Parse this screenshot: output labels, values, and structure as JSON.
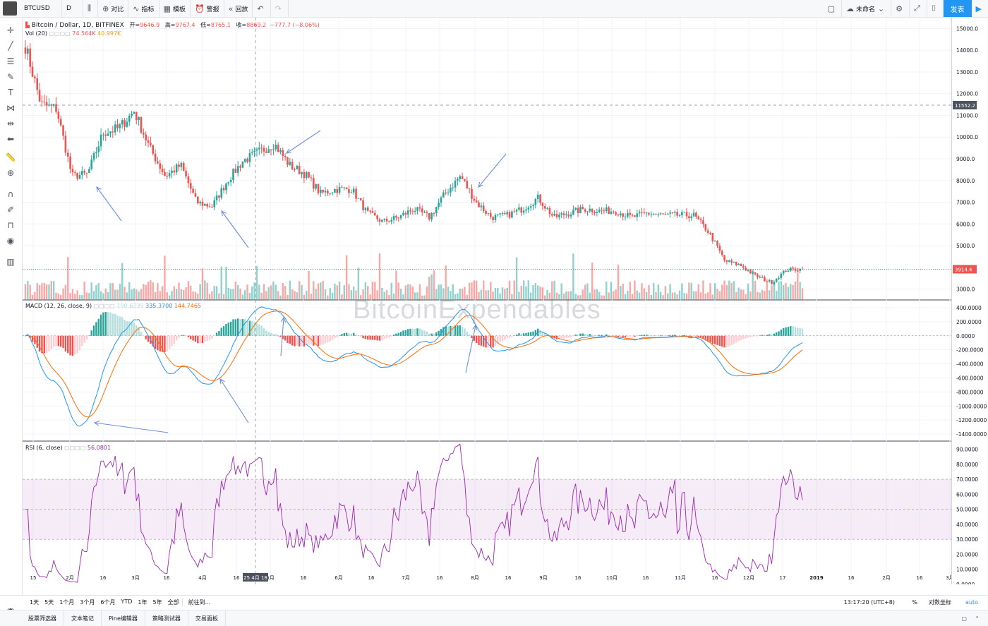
{
  "toolbar": {
    "symbol": "BTCUSD",
    "interval": "D",
    "compare": "对比",
    "indicators": "指标",
    "templates": "模板",
    "alert": "警报",
    "replay": "回放",
    "layout_name": "未命名",
    "publish": "发表"
  },
  "legend": {
    "main_title": "Bitcoin / Dollar, 1D, BITFINEX",
    "open_label": "开=",
    "open": "9646.9",
    "high_label": "高=",
    "high": "9767.4",
    "low_label": "低=",
    "low": "8765.1",
    "close_label": "收=",
    "close": "8869.2",
    "change": "−777.7 (−8.06%)",
    "vol_label": "Vol (20)",
    "vol_value": "74.564K",
    "vol_ma": "40.997K",
    "macd_label": "MACD (12, 26, close, 9)",
    "macd_hist": "190.6235",
    "macd_line": "335.3700",
    "macd_signal": "144.7465",
    "rsi_label": "RSI (6, close)",
    "rsi_value": "56.0801"
  },
  "price_axis": [
    "15000.0",
    "14000.0",
    "13000.0",
    "12000.0",
    "11000.0",
    "10000.0",
    "9000.0",
    "8000.0",
    "7000.0",
    "6000.0",
    "5000.0",
    "3000.0"
  ],
  "price_badges": {
    "crosshair": "11552.2",
    "last": "3914.4"
  },
  "macd_axis": [
    "400.0000",
    "200.0000",
    "0.0000",
    "-200.0000",
    "-400.0000",
    "-600.0000",
    "-800.0000",
    "-1000.0000",
    "-1200.0000",
    "-1400.0000"
  ],
  "rsi_axis": [
    "90.0000",
    "80.0000",
    "70.0000",
    "60.0000",
    "50.0000",
    "40.0000",
    "30.0000",
    "20.0000",
    "10.0000",
    "0.0000"
  ],
  "time_axis": [
    "15",
    "2月",
    "16",
    "3月",
    "16",
    "4月",
    "16",
    "5月",
    "16",
    "6月",
    "16",
    "7月",
    "16",
    "8月",
    "16",
    "9月",
    "16",
    "10月",
    "16",
    "11月",
    "16",
    "12月",
    "17",
    "2019",
    "16",
    "2月",
    "16",
    "3月"
  ],
  "time_badge": "25 4月 18",
  "bottombar": {
    "ranges": [
      "1天",
      "5天",
      "1个月",
      "3个月",
      "6个月",
      "YTD",
      "1年",
      "5年",
      "全部"
    ],
    "goto": "前往到...",
    "clock": "13:17:20 (UTC+8)",
    "percent": "%",
    "log": "对数坐标",
    "auto": "auto"
  },
  "footer": [
    "股票筛选器",
    "文本笔记",
    "Pine编辑器",
    "策略测试器",
    "交易面板"
  ],
  "watermark": "BitcoinExpendables",
  "colors": {
    "up": "#26a69a",
    "down": "#ef5350",
    "macd": "#2196f3",
    "signal": "#ff6d00",
    "rsi": "#9c27b0"
  },
  "chart_data": {
    "type": "candlestick",
    "symbol": "BTCUSD",
    "exchange": "BITFINEX",
    "interval": "1D",
    "ylim": [
      2500,
      15500
    ],
    "weekly_close": [
      [
        "2018-01-08",
        14200
      ],
      [
        "2018-01-15",
        11500
      ],
      [
        "2018-01-22",
        11300
      ],
      [
        "2018-01-29",
        8200
      ],
      [
        "2018-02-05",
        8300
      ],
      [
        "2018-02-12",
        10200
      ],
      [
        "2018-02-19",
        10400
      ],
      [
        "2018-02-26",
        11200
      ],
      [
        "2018-03-05",
        9500
      ],
      [
        "2018-03-12",
        8200
      ],
      [
        "2018-03-19",
        8700
      ],
      [
        "2018-03-26",
        7000
      ],
      [
        "2018-04-02",
        6800
      ],
      [
        "2018-04-09",
        8000
      ],
      [
        "2018-04-16",
        8900
      ],
      [
        "2018-04-23",
        9300
      ],
      [
        "2018-04-30",
        9700
      ],
      [
        "2018-05-07",
        8700
      ],
      [
        "2018-05-14",
        8300
      ],
      [
        "2018-05-21",
        7400
      ],
      [
        "2018-05-28",
        7600
      ],
      [
        "2018-06-04",
        7600
      ],
      [
        "2018-06-11",
        6500
      ],
      [
        "2018-06-18",
        6100
      ],
      [
        "2018-06-25",
        6300
      ],
      [
        "2018-07-02",
        6700
      ],
      [
        "2018-07-09",
        6300
      ],
      [
        "2018-07-16",
        7400
      ],
      [
        "2018-07-23",
        8200
      ],
      [
        "2018-07-30",
        7000
      ],
      [
        "2018-08-06",
        6300
      ],
      [
        "2018-08-13",
        6400
      ],
      [
        "2018-08-20",
        6700
      ],
      [
        "2018-08-27",
        7200
      ],
      [
        "2018-09-03",
        6300
      ],
      [
        "2018-09-10",
        6500
      ],
      [
        "2018-09-17",
        6700
      ],
      [
        "2018-09-24",
        6600
      ],
      [
        "2018-10-01",
        6600
      ],
      [
        "2018-10-08",
        6300
      ],
      [
        "2018-10-15",
        6500
      ],
      [
        "2018-10-22",
        6400
      ],
      [
        "2018-10-29",
        6400
      ],
      [
        "2018-11-05",
        6400
      ],
      [
        "2018-11-12",
        5600
      ],
      [
        "2018-11-19",
        4300
      ],
      [
        "2018-11-26",
        4100
      ],
      [
        "2018-12-03",
        3600
      ],
      [
        "2018-12-10",
        3300
      ],
      [
        "2018-12-17",
        3900
      ],
      [
        "2018-12-24",
        3914.4
      ]
    ],
    "macd": {
      "line": 335.37,
      "signal": 144.7465,
      "histogram": 190.6235
    },
    "rsi": {
      "period": 6,
      "value": 56.0801,
      "band": [
        30,
        70
      ]
    }
  }
}
